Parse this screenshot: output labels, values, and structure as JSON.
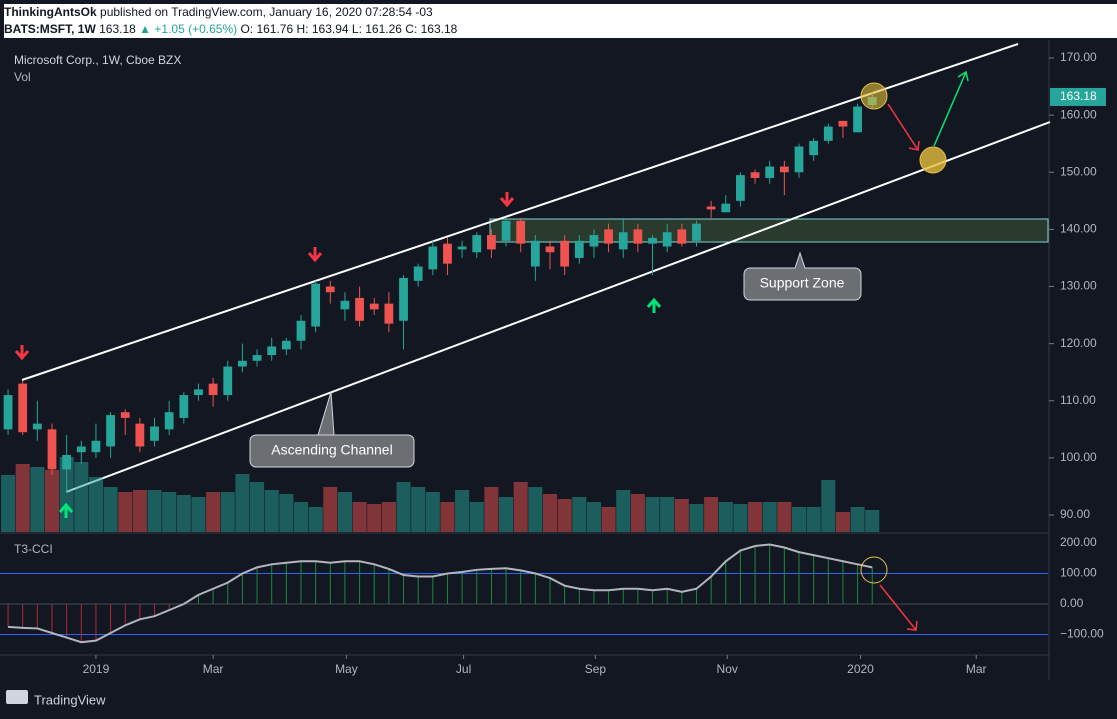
{
  "header": {
    "author": "ThinkingAntsOk",
    "published": "published on TradingView.com, January 16, 2020 07:28:54 -03",
    "symbol": "BATS:MSFT, 1W",
    "price": "163.18",
    "change": "▲ +1.05 (+0.65%)",
    "open": "O: 161.76",
    "high": "H: 163.94",
    "low": "L: 161.26",
    "close": "C: 163.18"
  },
  "chart_data": [
    {
      "type": "candlestick",
      "title": "Microsoft Corp., 1W, Cboe BZX",
      "volume_label": "Vol",
      "up_color": "#26a69a",
      "down_color": "#ef5350",
      "last_price": {
        "value": 163.18,
        "label": "163.18"
      },
      "open": [
        105,
        113,
        105,
        105,
        98,
        101,
        101,
        102,
        108,
        106,
        103,
        105,
        107,
        111,
        113,
        111,
        116,
        117,
        118,
        119,
        120.5,
        123,
        130,
        126,
        128,
        127,
        127,
        124,
        131,
        133,
        137.5,
        136.5,
        136,
        139,
        138,
        141.5,
        133.5,
        137,
        138,
        135,
        137,
        140,
        136.5,
        140,
        137.5,
        137,
        140,
        138,
        144,
        143,
        145,
        150,
        149,
        151,
        150,
        153,
        155.5,
        159,
        157,
        161.76
      ],
      "high": [
        112,
        113.5,
        110,
        106,
        104,
        103,
        106,
        108,
        108.5,
        107,
        107,
        110,
        111.5,
        113,
        114,
        117,
        120,
        119,
        121,
        121,
        125,
        131,
        131,
        129,
        130,
        128,
        129,
        132,
        134,
        138,
        138.5,
        138,
        139.5,
        140,
        142,
        142,
        139,
        138,
        139,
        139,
        140,
        141,
        142,
        141,
        139,
        141,
        141,
        141.5,
        145,
        146,
        150,
        150.5,
        152,
        152,
        155,
        156,
        158.5,
        159,
        162,
        163.94
      ],
      "low": [
        104,
        104,
        103,
        97,
        94,
        99,
        100,
        100,
        104,
        101,
        102,
        104,
        106,
        110,
        109,
        110,
        115,
        116,
        117,
        118,
        119,
        122,
        127,
        124,
        123,
        125,
        122,
        119,
        130,
        132,
        132,
        135,
        135,
        135,
        137,
        136,
        131,
        133,
        132,
        134,
        135,
        136,
        135,
        136,
        132,
        136,
        137,
        137,
        142,
        143,
        144,
        148,
        148,
        146,
        149,
        152,
        155,
        156,
        157,
        161.26
      ],
      "close": [
        111,
        104.5,
        106,
        98,
        100.5,
        102,
        103,
        107.5,
        107,
        102,
        105.5,
        108,
        111,
        112,
        111,
        116,
        117,
        118,
        119.5,
        120.5,
        124,
        130.5,
        129,
        127.5,
        124,
        126,
        123.5,
        131.5,
        133.5,
        137,
        134,
        137,
        139,
        136.5,
        141.5,
        137.5,
        138,
        136,
        133.5,
        138,
        139,
        137.5,
        139.5,
        137.5,
        138.5,
        139.5,
        137.5,
        141,
        143.5,
        144.5,
        149.5,
        149,
        151,
        150,
        154.5,
        155.5,
        158,
        158,
        161.5,
        163.18
      ],
      "volume": [
        57,
        68,
        65,
        62,
        75,
        70,
        55,
        45,
        40,
        42,
        42,
        40,
        37,
        35,
        40,
        40,
        58,
        50,
        42,
        38,
        30,
        25,
        45,
        40,
        30,
        28,
        30,
        50,
        45,
        40,
        30,
        42,
        30,
        45,
        35,
        50,
        45,
        38,
        33,
        35,
        30,
        25,
        42,
        38,
        35,
        35,
        33,
        28,
        35,
        30,
        28,
        30,
        30,
        30,
        25,
        25,
        52,
        20,
        25,
        22
      ],
      "xlim": [
        -0.55,
        71
      ],
      "xticks": [
        {
          "value": 6,
          "label": "2019"
        },
        {
          "value": 14,
          "label": "Mar"
        },
        {
          "value": 23.1,
          "label": "May"
        },
        {
          "value": 31.1,
          "label": "Jul"
        },
        {
          "value": 40.1,
          "label": "Sep"
        },
        {
          "value": 49.1,
          "label": "Nov"
        },
        {
          "value": 58.2,
          "label": "2020"
        },
        {
          "value": 66.1,
          "label": "Mar"
        }
      ],
      "ylim": [
        87.03,
        173.15
      ],
      "yticks": [
        {
          "value": 90,
          "label": "90.00"
        },
        {
          "value": 100,
          "label": "100.00"
        },
        {
          "value": 110,
          "label": "110.00"
        },
        {
          "value": 120,
          "label": "120.00"
        },
        {
          "value": 130,
          "label": "130.00"
        },
        {
          "value": 140,
          "label": "140.00"
        },
        {
          "value": 150,
          "label": "150.00"
        },
        {
          "value": 160,
          "label": "160.00"
        },
        {
          "value": 170,
          "label": "170.00"
        }
      ],
      "annotations": [
        "Ascending Channel",
        "Support Zone"
      ]
    },
    {
      "type": "line",
      "title": "T3-CCI",
      "color": "#b2b5be",
      "values": [
        -75,
        -78,
        -80,
        -95,
        -110,
        -125,
        -120,
        -95,
        -70,
        -50,
        -40,
        -20,
        0,
        30,
        50,
        70,
        100,
        120,
        130,
        135,
        140,
        140,
        135,
        140,
        140,
        130,
        115,
        95,
        90,
        90,
        100,
        105,
        112,
        115,
        117,
        110,
        100,
        85,
        60,
        50,
        45,
        45,
        50,
        50,
        45,
        50,
        40,
        50,
        90,
        140,
        175,
        190,
        195,
        185,
        170,
        160,
        150,
        140,
        130,
        120
      ],
      "ylim": [
        -167,
        226
      ],
      "yticks": [
        {
          "value": 200,
          "label": "200.00"
        },
        {
          "value": 100,
          "label": "100.00"
        },
        {
          "value": 0,
          "label": "0.00"
        },
        {
          "value": -100,
          "label": "−100.00"
        }
      ]
    }
  ],
  "footer": "TradingView"
}
